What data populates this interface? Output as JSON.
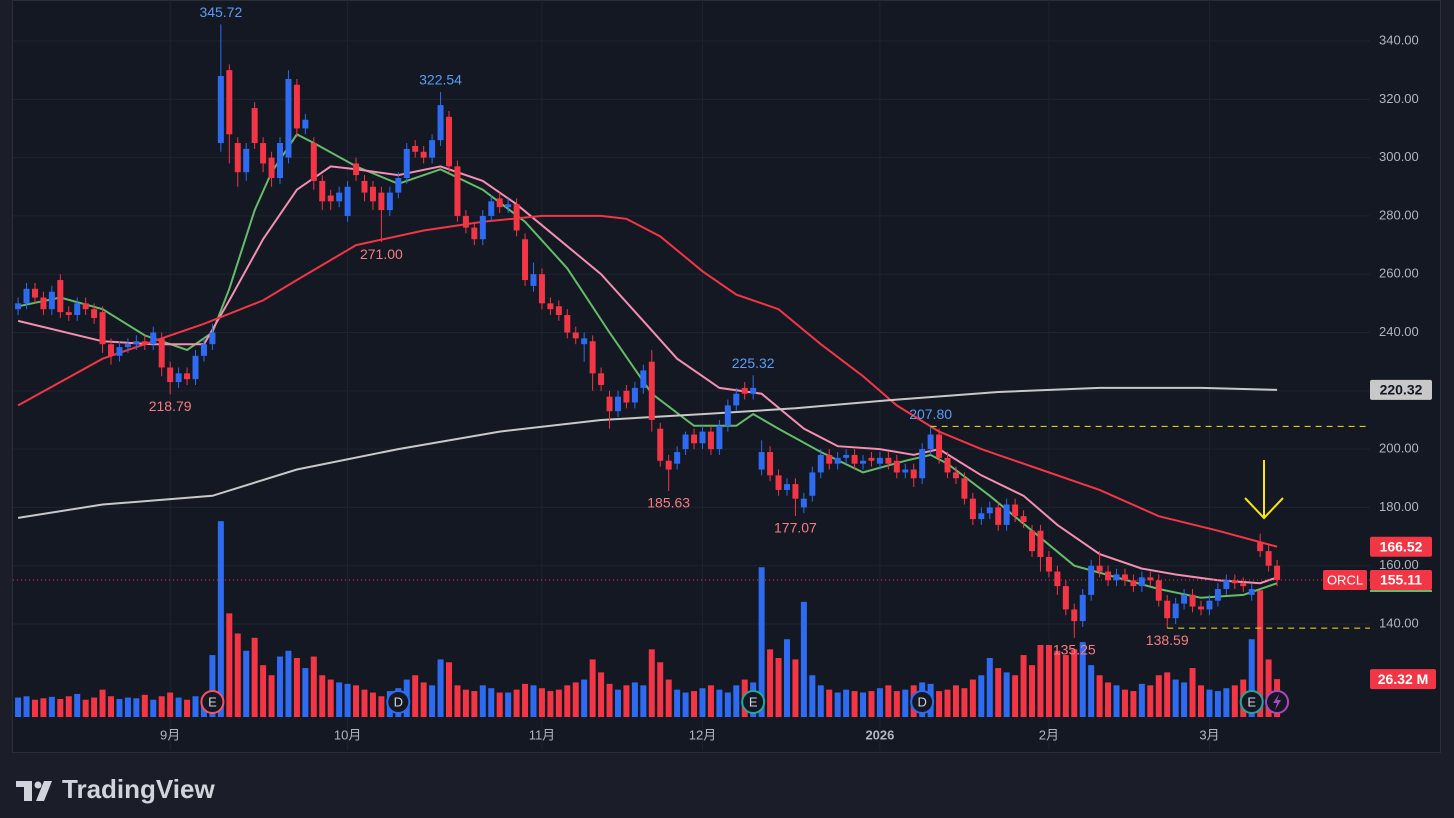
{
  "brand": "TradingView",
  "chart_data": {
    "type": "candlestick",
    "symbol": "ORCL",
    "up_color": "#2f6bf0",
    "down_color": "#f23645",
    "xlim": [
      -0.6,
      160
    ],
    "ylim": [
      96.78,
      354.07
    ],
    "grid": true,
    "xticks": [
      {
        "value": 18,
        "label": "9月"
      },
      {
        "value": 39,
        "label": "10月"
      },
      {
        "value": 62,
        "label": "11月"
      },
      {
        "value": 81,
        "label": "12月"
      },
      {
        "value": 102,
        "label": "2026",
        "bold": true
      },
      {
        "value": 122,
        "label": "2月"
      },
      {
        "value": 141,
        "label": "3月"
      }
    ],
    "yticks": [
      {
        "value": 140,
        "label": "140.00"
      },
      {
        "value": 160,
        "label": "160.00"
      },
      {
        "value": 180,
        "label": "180.00"
      },
      {
        "value": 200,
        "label": "200.00"
      },
      {
        "value": 220,
        "label": "220.00"
      },
      {
        "value": 240,
        "label": "240.00"
      },
      {
        "value": 260,
        "label": "260.00"
      },
      {
        "value": 280,
        "label": "280.00"
      },
      {
        "value": 300,
        "label": "300.00"
      },
      {
        "value": 320,
        "label": "320.00"
      },
      {
        "value": 340,
        "label": "340.00"
      }
    ],
    "candles": {
      "open": [
        248,
        250,
        255,
        252,
        248,
        258,
        247,
        246,
        250,
        248,
        247,
        236,
        232,
        235,
        236,
        237,
        236,
        238,
        228,
        223,
        226,
        224,
        232,
        236,
        305,
        330,
        305,
        295,
        317,
        305,
        300,
        293,
        300,
        325,
        310,
        305,
        292,
        287,
        285,
        280,
        298,
        292,
        290,
        288,
        282,
        288,
        293,
        304,
        302,
        300,
        306,
        314,
        297,
        280,
        276,
        272,
        280,
        286,
        283,
        284,
        272,
        256,
        260,
        250,
        249,
        246,
        240,
        236,
        237,
        226,
        218,
        213,
        220,
        216,
        221,
        230,
        207,
        196,
        195,
        200,
        205,
        202,
        206,
        200,
        208,
        215,
        221,
        219,
        193,
        199,
        191,
        186,
        188,
        180,
        184,
        192,
        198,
        195,
        197,
        198,
        195,
        197,
        195,
        197,
        196,
        192,
        193,
        190,
        200,
        205,
        197,
        192,
        190,
        183,
        176,
        178,
        180,
        174,
        181,
        177,
        172,
        172,
        163,
        158,
        153,
        145,
        141,
        150,
        160,
        158,
        155,
        157,
        155,
        153,
        156,
        155,
        148,
        142,
        147,
        150,
        146,
        145,
        148,
        152,
        155,
        154,
        150,
        168,
        165,
        160
      ],
      "high": [
        252,
        257,
        257,
        254,
        256,
        260,
        249,
        252,
        252,
        250,
        249,
        238,
        237,
        238,
        239,
        239,
        242,
        240,
        230,
        228,
        228,
        234,
        238,
        243,
        345.72,
        332,
        307,
        305,
        319,
        307,
        302,
        307,
        330,
        327,
        315,
        307,
        294,
        289,
        290,
        292,
        300,
        294,
        292,
        290,
        290,
        295,
        305,
        306,
        304,
        308,
        322.54,
        316,
        299,
        282,
        278,
        282,
        287,
        288,
        286,
        286,
        274,
        264,
        262,
        252,
        251,
        248,
        242,
        240,
        239,
        228,
        220,
        220,
        222,
        223,
        229,
        234,
        209,
        198,
        201,
        206,
        207,
        208,
        208,
        210,
        217,
        221,
        223,
        225.32,
        203,
        201,
        193,
        190,
        190,
        185,
        194,
        200,
        200,
        199,
        200,
        200,
        198,
        199,
        199,
        199,
        198,
        195,
        195,
        202,
        207.8,
        207,
        199,
        194,
        192,
        185,
        180,
        182,
        182,
        183,
        183,
        179,
        174,
        174,
        165,
        160,
        155,
        147,
        152,
        162,
        165,
        160,
        159,
        159,
        157,
        158,
        158,
        157,
        150,
        149,
        152,
        152,
        148,
        150,
        154,
        157,
        157,
        156,
        154,
        171,
        167,
        162
      ],
      "low": [
        246,
        248,
        250,
        246,
        246,
        245,
        244,
        244,
        246,
        243,
        233,
        229,
        230,
        233,
        234,
        234,
        234,
        225,
        218.79,
        221,
        222,
        222,
        230,
        234,
        302,
        298,
        290,
        292,
        303,
        295,
        290,
        291,
        298,
        307,
        308,
        289,
        282,
        282,
        283,
        278,
        292,
        285,
        282,
        271,
        280,
        286,
        291,
        300,
        298,
        298,
        304,
        295,
        278,
        274,
        270,
        270,
        278,
        281,
        281,
        273,
        256,
        254,
        248,
        246,
        244,
        238,
        236,
        230,
        220,
        220,
        207,
        211,
        214,
        214,
        219,
        206,
        194,
        185.63,
        193,
        198,
        200,
        200,
        198,
        198,
        206,
        213,
        217,
        217,
        191,
        189,
        184,
        184,
        177.07,
        178,
        182,
        190,
        193,
        193,
        195,
        193,
        193,
        194,
        193,
        193,
        190,
        190,
        187,
        188,
        198,
        195,
        190,
        188,
        181,
        174,
        174,
        176,
        172,
        172,
        175,
        173,
        163,
        158,
        156,
        150,
        143,
        135.25,
        139,
        148,
        156,
        153,
        153,
        153,
        151,
        151,
        153,
        146,
        138.59,
        140,
        145,
        144,
        143,
        143,
        146,
        150,
        152,
        151,
        148,
        163,
        158,
        153
      ],
      "close": [
        250,
        255,
        252,
        248,
        254,
        247,
        246,
        250,
        248,
        245,
        236,
        232,
        235,
        236,
        237,
        236,
        240,
        228,
        223,
        226,
        224,
        232,
        236,
        240,
        328,
        308,
        295,
        303,
        305,
        298,
        293,
        305,
        327,
        310,
        313,
        292,
        285,
        285,
        288,
        290,
        294,
        288,
        285,
        282,
        288,
        293,
        303,
        302,
        300,
        306,
        318,
        297,
        280,
        276,
        272,
        280,
        285,
        283,
        284,
        275,
        258,
        260,
        250,
        248,
        246,
        240,
        238,
        238,
        226,
        222,
        213,
        218,
        216,
        221,
        227,
        210,
        196,
        193,
        199,
        205,
        202,
        206,
        200,
        208,
        215,
        219,
        219,
        221,
        199,
        191,
        186,
        188,
        183,
        183,
        192,
        198,
        195,
        197,
        198,
        195,
        196,
        196,
        197,
        195,
        192,
        193,
        190,
        200,
        205,
        197,
        192,
        190,
        183,
        176,
        178,
        180,
        174,
        181,
        177,
        175,
        165,
        163,
        158,
        153,
        145,
        141,
        150,
        160,
        158,
        155,
        157,
        155,
        153,
        156,
        155,
        148,
        142,
        147,
        150,
        146,
        145,
        148,
        152,
        155,
        154,
        153,
        152,
        165,
        160,
        155.11
      ]
    },
    "volume": {
      "ylim": [
        0,
        498
      ],
      "values": [
        13.5,
        14.4,
        12,
        13,
        14,
        12.5,
        14.4,
        16,
        12,
        13.5,
        19,
        14.4,
        12.5,
        13.5,
        13,
        15.4,
        12,
        14.4,
        17,
        13.5,
        12,
        14.4,
        13.5,
        43,
        136,
        72,
        58,
        46,
        55,
        36,
        29,
        42,
        46,
        41,
        34,
        42,
        29,
        26,
        24,
        23,
        22,
        19,
        17,
        14.4,
        18,
        20,
        26,
        29,
        24,
        22,
        40,
        38,
        22,
        19,
        18,
        22,
        20,
        17,
        17,
        19,
        23,
        22,
        20,
        18,
        19,
        22,
        24,
        26,
        40,
        31,
        23,
        19,
        22,
        24,
        22,
        47,
        38,
        26,
        19,
        17,
        18,
        20,
        22,
        19,
        17,
        22,
        26,
        24,
        104,
        47,
        41,
        54,
        40,
        80,
        29,
        22,
        19,
        17,
        19,
        18,
        17,
        18,
        20,
        22,
        18,
        19,
        22,
        24,
        23,
        18,
        19,
        22,
        20,
        26,
        29,
        41,
        34,
        31,
        29,
        43,
        36,
        50,
        50,
        46,
        43,
        47,
        52,
        36,
        29,
        24,
        22,
        19,
        18,
        23,
        22,
        29,
        31,
        26,
        24,
        34,
        22,
        19,
        18,
        20,
        22,
        26,
        54,
        88,
        40,
        26.32
      ],
      "value_labels": {
        "149": "26.32 M"
      }
    },
    "moving_averages": [
      {
        "color": "#66bb6a",
        "x": [
          0,
          5,
          10,
          15,
          20,
          23,
          25,
          28,
          30,
          33,
          35,
          40,
          45,
          50,
          55,
          60,
          65,
          70,
          75,
          80,
          85,
          87,
          90,
          95,
          100,
          105,
          108,
          110,
          115,
          120,
          125,
          130,
          135,
          140,
          145,
          149
        ],
        "values": [
          249,
          252,
          248,
          239,
          234,
          240,
          255,
          282,
          295,
          308,
          305,
          297,
          291,
          296,
          289,
          278,
          262,
          240,
          219,
          208,
          208,
          212,
          207,
          199,
          192,
          196,
          198,
          195,
          184,
          172,
          160,
          156,
          152,
          149,
          150,
          154
        ]
      },
      {
        "color": "#f48fb1",
        "x": [
          0,
          10,
          16,
          22,
          25,
          29,
          33,
          37,
          40,
          45,
          50,
          55,
          59,
          64,
          69,
          74,
          78,
          83,
          88,
          93,
          97,
          102,
          106,
          109,
          114,
          119,
          123,
          128,
          133,
          137,
          142,
          147,
          149
        ],
        "values": [
          244,
          237,
          236,
          236,
          251,
          272,
          289,
          297,
          296,
          294,
          297,
          292,
          284,
          272,
          260,
          244,
          231,
          221,
          219,
          207,
          201,
          200,
          198,
          200,
          191,
          184,
          174,
          164,
          159,
          157,
          155,
          154,
          156
        ]
      },
      {
        "color": "#f23645",
        "x": [
          0,
          10,
          22,
          29,
          33,
          40,
          48,
          55,
          62,
          69,
          72,
          76,
          81,
          85,
          90,
          95,
          100,
          104,
          109,
          114,
          121,
          128,
          135,
          142,
          149
        ],
        "values": [
          215,
          231,
          243,
          251,
          258,
          270,
          275,
          278,
          280,
          280,
          279,
          273,
          261,
          253,
          248,
          236,
          225,
          215,
          206,
          200,
          193,
          186,
          177,
          172,
          166.52
        ],
        "last_label": true
      },
      {
        "color": "#c8c8c8",
        "x": [
          0,
          10,
          23,
          33,
          45,
          57,
          69,
          81,
          92,
          104,
          116,
          128,
          140,
          149
        ],
        "values": [
          176.4,
          181,
          184,
          193,
          200,
          206,
          210,
          212,
          214,
          217,
          219.6,
          221,
          221,
          220.32
        ],
        "last_label": true
      }
    ],
    "high_labels": {
      "24": "345.72",
      "50": "322.54",
      "87": "225.32",
      "108": "207.80"
    },
    "low_labels": {
      "18": "218.79",
      "43": "271.00",
      "77": "185.63",
      "92": "177.07",
      "125": "135.25",
      "136": "138.59"
    },
    "horizontal_lines": [
      {
        "value": 207.8,
        "from": 108,
        "color": "#f5e50e"
      },
      {
        "value": 138.59,
        "from": 136,
        "color": "#f5e50e"
      }
    ],
    "events": [
      {
        "at": 23,
        "label": "E",
        "color": "#f7525f"
      },
      {
        "at": 45,
        "label": "D",
        "color": "#2f6bf0"
      },
      {
        "at": 87,
        "label": "E",
        "color": "#26a69a"
      },
      {
        "at": 107,
        "label": "D",
        "color": "#2f6bf0"
      },
      {
        "at": 146,
        "label": "E",
        "color": "#26a69a"
      }
    ]
  }
}
